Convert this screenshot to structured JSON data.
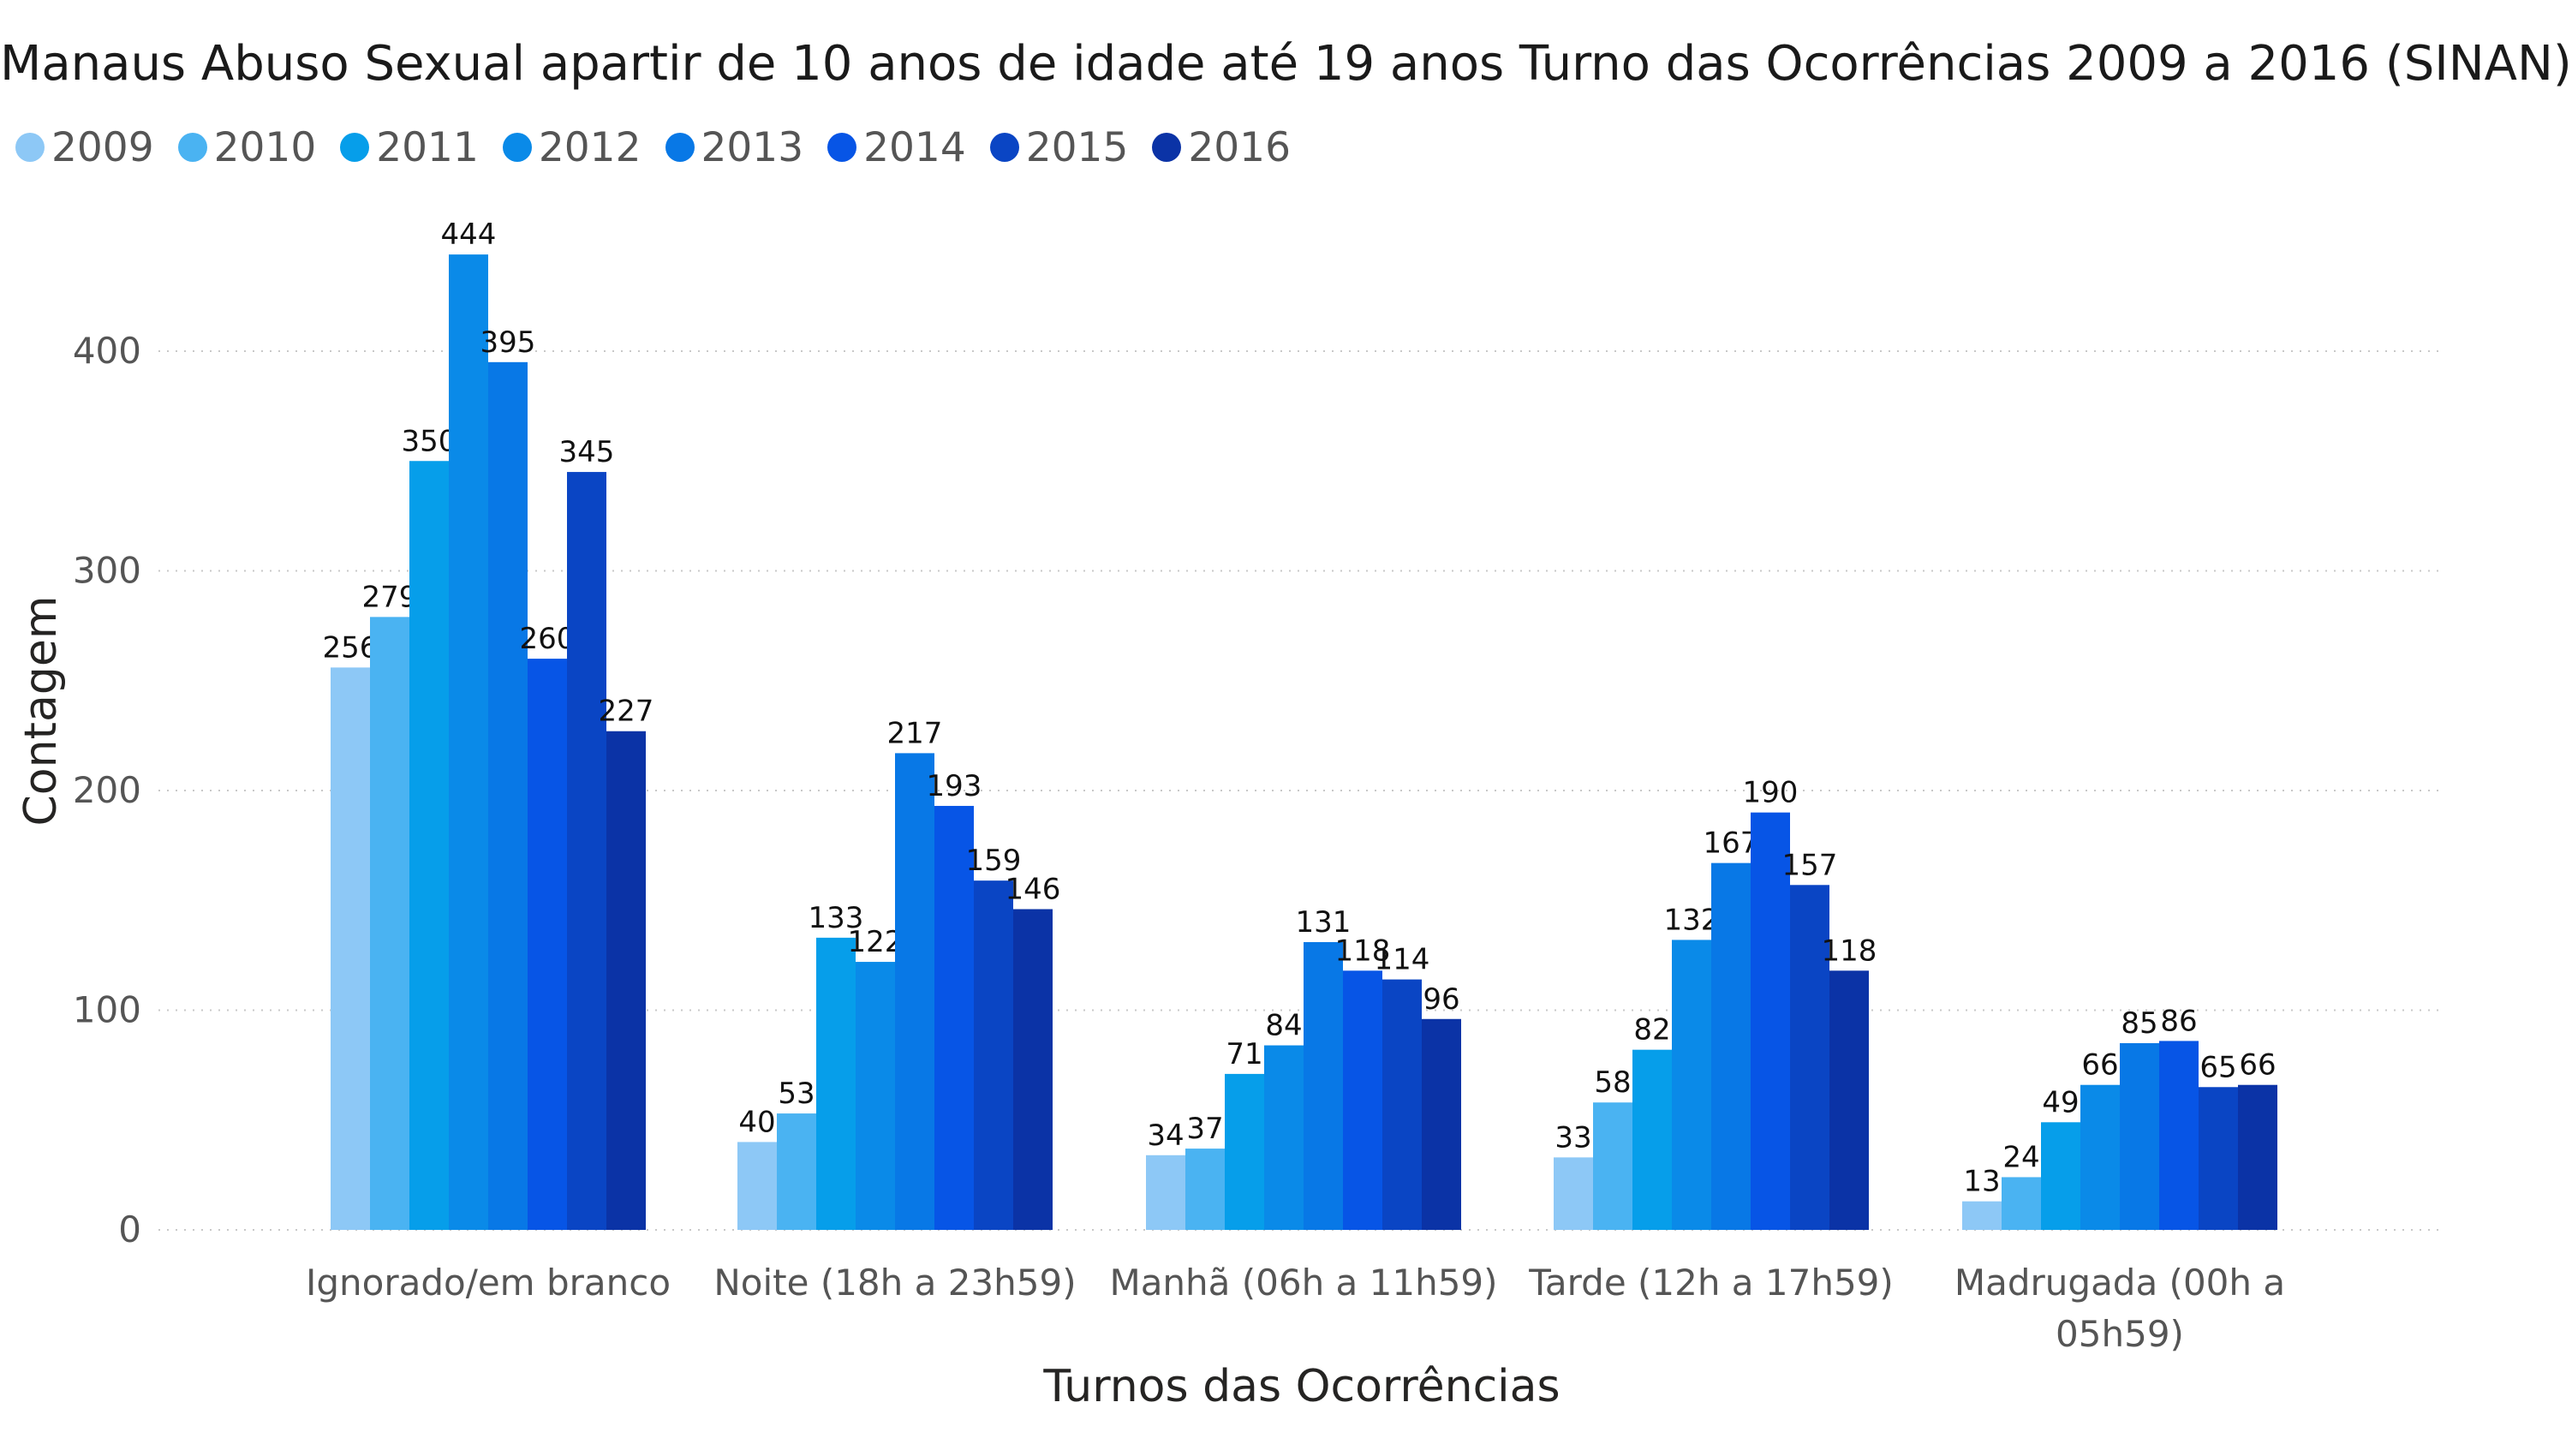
{
  "chart_data": {
    "type": "bar",
    "title": "Manaus Abuso Sexual apartir de 10 anos de idade até 19 anos Turno das Ocorrências 2009 a 2016 (SINAN)",
    "xlabel": "Turnos das Ocorrências",
    "ylabel": "Contagem",
    "ylim": [
      0,
      450
    ],
    "yticks": [
      0,
      100,
      200,
      300,
      400
    ],
    "grid": true,
    "legend_position": "top-left",
    "categories": [
      "Ignorado/em branco",
      "Noite (18h a 23h59)",
      "Manhã (06h a 11h59)",
      "Tarde (12h a 17h59)",
      "Madrugada (00h a 05h59)"
    ],
    "series": [
      {
        "name": "2009",
        "color": "#8DC8F6",
        "values": [
          256,
          40,
          34,
          33,
          13
        ]
      },
      {
        "name": "2010",
        "color": "#4AB3F2",
        "values": [
          279,
          53,
          37,
          58,
          24
        ]
      },
      {
        "name": "2011",
        "color": "#069EEA",
        "values": [
          350,
          133,
          71,
          82,
          49
        ]
      },
      {
        "name": "2012",
        "color": "#0A8AE8",
        "values": [
          444,
          122,
          84,
          132,
          66
        ]
      },
      {
        "name": "2013",
        "color": "#0878E6",
        "values": [
          395,
          217,
          131,
          167,
          85
        ]
      },
      {
        "name": "2014",
        "color": "#0755E6",
        "values": [
          260,
          193,
          118,
          190,
          86
        ]
      },
      {
        "name": "2015",
        "color": "#0A45C4",
        "values": [
          345,
          159,
          114,
          157,
          65
        ]
      },
      {
        "name": "2016",
        "color": "#0B33A6",
        "values": [
          227,
          146,
          96,
          118,
          66
        ]
      }
    ]
  }
}
